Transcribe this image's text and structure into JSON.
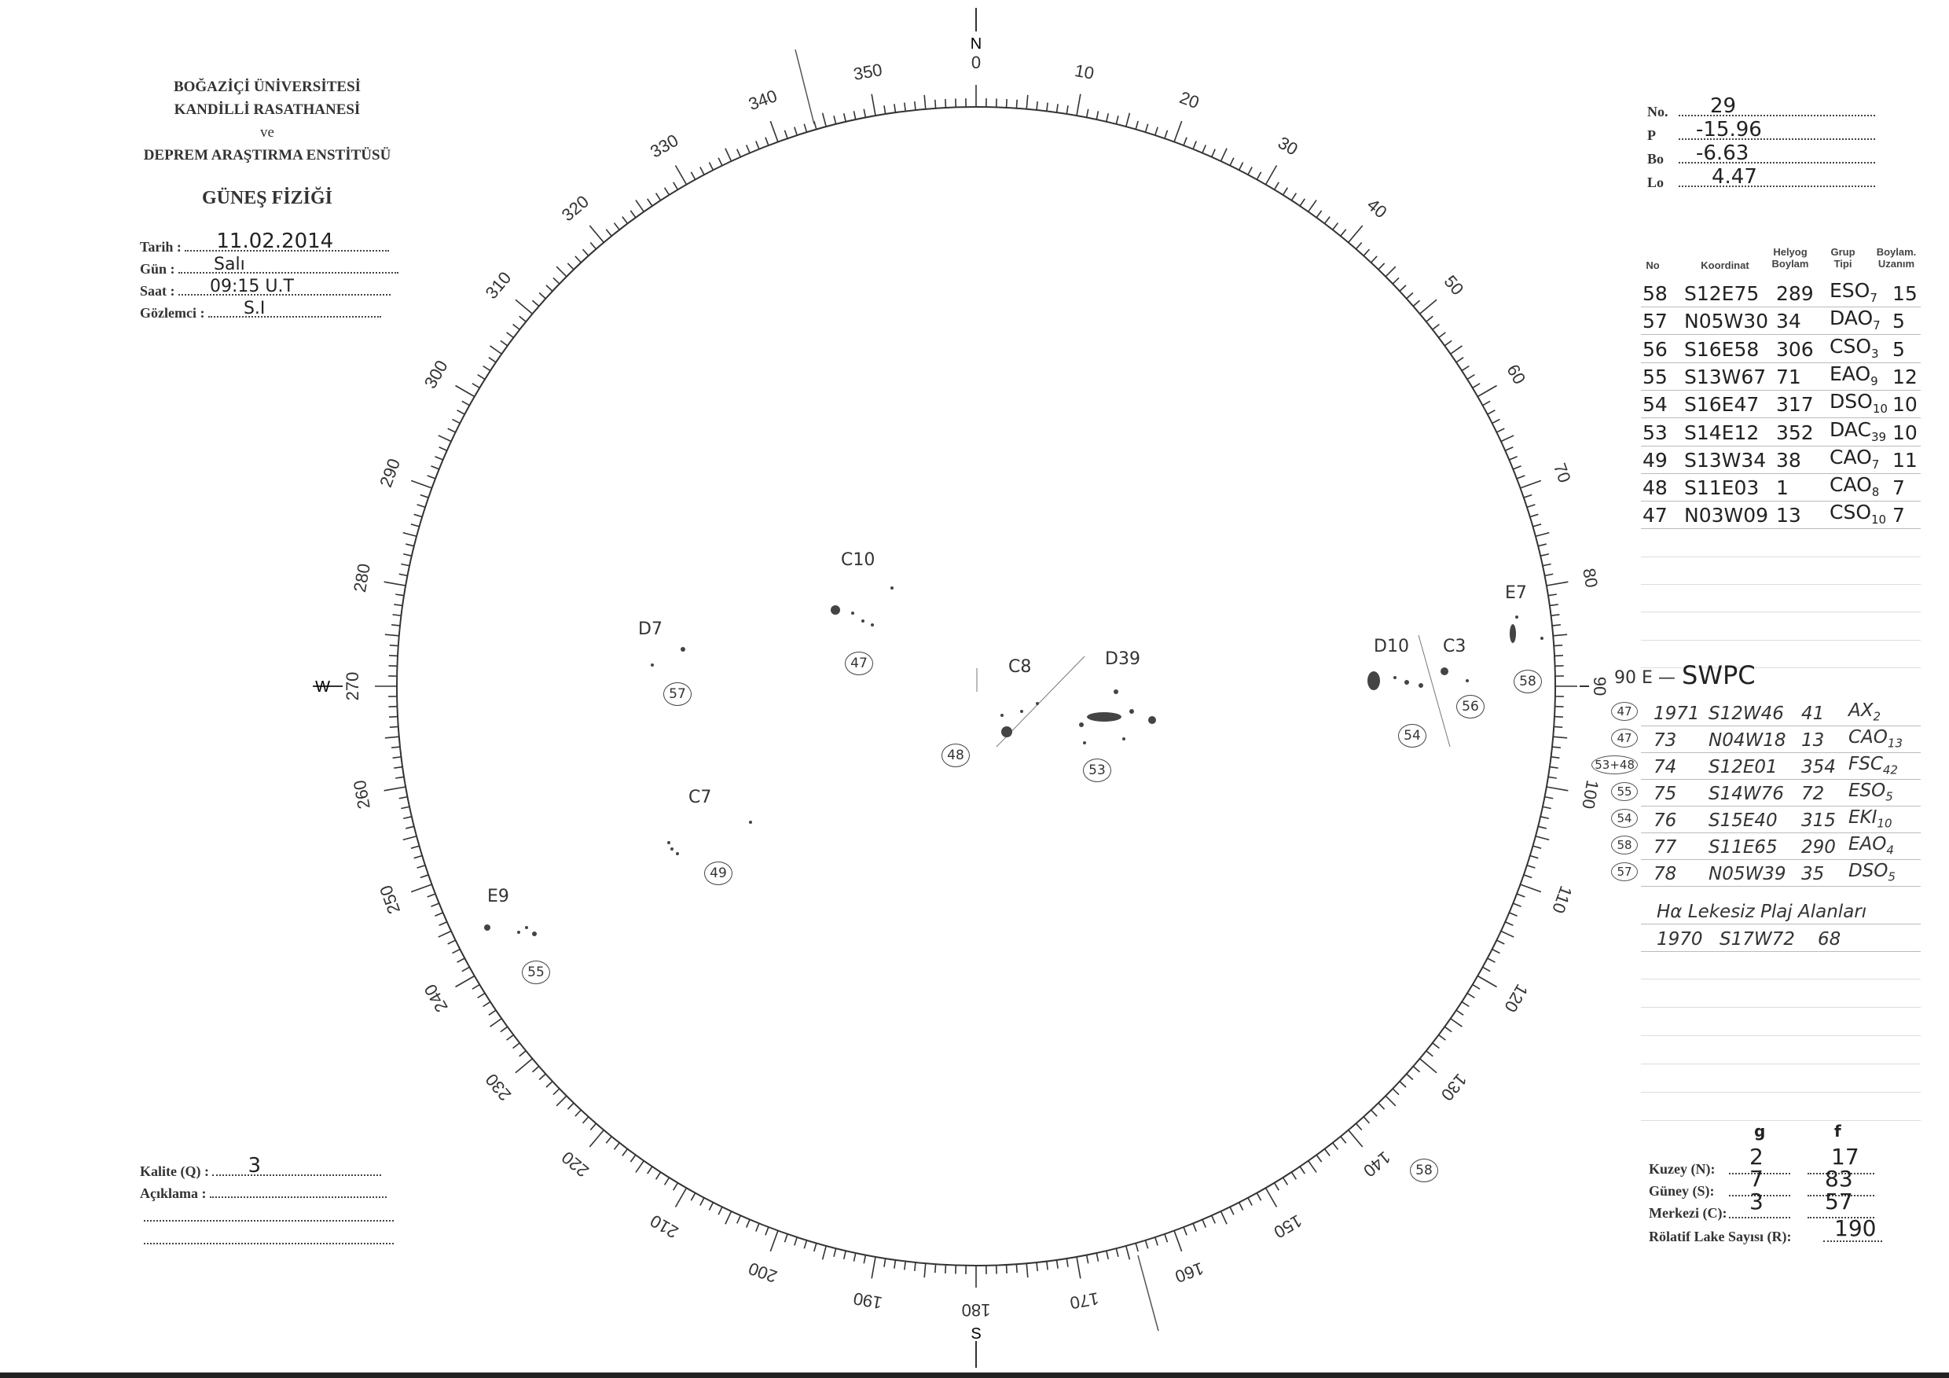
{
  "header": {
    "line1": "BOĞAZİÇİ ÜNİVERSİTESİ",
    "line2": "KANDİLLİ RASATHANESİ",
    "line3": "ve",
    "line4": "DEPREM ARAŞTIRMA ENSTİTÜSÜ",
    "title": "GÜNEŞ FİZİĞİ"
  },
  "observation": {
    "tarih_label": "Tarih :",
    "tarih": "11.02.2014",
    "gun_label": "Gün :",
    "gun": "Salı",
    "saat_label": "Saat :",
    "saat": "09:15 U.T",
    "gozlemci_label": "Gözlemci :",
    "gozlemci": "S.I"
  },
  "quality": {
    "kalite_label": "Kalite (Q) :",
    "kalite": "3",
    "aciklama_label": "Açıklama :"
  },
  "params": {
    "no_label": "No.",
    "no": "29",
    "p_label": "P",
    "p": "-15.96",
    "bo_label": "Bo",
    "bo": "-6.63",
    "lo_label": "Lo",
    "lo": "4.47"
  },
  "groups_table": {
    "headers": {
      "no": "No",
      "koordinat": "Koordinat",
      "helyog": "Helyog Boylam",
      "grup": "Grup Tipi",
      "uzanim": "Boylam. Uzanım"
    },
    "rows": [
      {
        "no": "58",
        "coord": "S12E75",
        "lon": "289",
        "type": "ESO",
        "sub": "7",
        "ext": "15"
      },
      {
        "no": "57",
        "coord": "N05W30",
        "lon": "34",
        "type": "DAO",
        "sub": "7",
        "ext": "5"
      },
      {
        "no": "56",
        "coord": "S16E58",
        "lon": "306",
        "type": "CSO",
        "sub": "3",
        "ext": "5"
      },
      {
        "no": "55",
        "coord": "S13W67",
        "lon": "71",
        "type": "EAO",
        "sub": "9",
        "ext": "12"
      },
      {
        "no": "54",
        "coord": "S16E47",
        "lon": "317",
        "type": "DSO",
        "sub": "10",
        "ext": "10"
      },
      {
        "no": "53",
        "coord": "S14E12",
        "lon": "352",
        "type": "DAC",
        "sub": "39",
        "ext": "10"
      },
      {
        "no": "49",
        "coord": "S13W34",
        "lon": "38",
        "type": "CAO",
        "sub": "7",
        "ext": "11"
      },
      {
        "no": "48",
        "coord": "S11E03",
        "lon": "1",
        "type": "CAO",
        "sub": "8",
        "ext": "7"
      },
      {
        "no": "47",
        "coord": "N03W09",
        "lon": "13",
        "type": "CSO",
        "sub": "10",
        "ext": "7"
      }
    ]
  },
  "swpc": {
    "prefix": "90 E —",
    "title": "SWPC",
    "rows": [
      {
        "ref": "47",
        "no": "1971",
        "coord": "S12W46",
        "lon": "41",
        "type": "AX",
        "sub": "2"
      },
      {
        "ref": "47",
        "no": "73",
        "coord": "N04W18",
        "lon": "13",
        "type": "CAO",
        "sub": "13"
      },
      {
        "ref": "53+48",
        "no": "74",
        "coord": "S12E01",
        "lon": "354",
        "type": "FSC",
        "sub": "42"
      },
      {
        "ref": "55",
        "no": "75",
        "coord": "S14W76",
        "lon": "72",
        "type": "ESO",
        "sub": "5"
      },
      {
        "ref": "54",
        "no": "76",
        "coord": "S15E40",
        "lon": "315",
        "type": "EKI",
        "sub": "10"
      },
      {
        "ref": "58",
        "no": "77",
        "coord": "S11E65",
        "lon": "290",
        "type": "EAO",
        "sub": "4"
      },
      {
        "ref": "57",
        "no": "78",
        "coord": "N05W39",
        "lon": "35",
        "type": "DSO",
        "sub": "5"
      }
    ],
    "plage_title": "Hα Lekesiz Plaj Alanları",
    "plage": {
      "no": "1970",
      "coord": "S17W72",
      "lon": "68"
    }
  },
  "counts": {
    "g_label": "g",
    "f_label": "f",
    "kuzey_label": "Kuzey (N):",
    "kuzey_g": "2",
    "kuzey_f": "17",
    "guney_label": "Güney (S):",
    "guney_g": "7",
    "guney_f": "83",
    "merkezi_label": "Merkezi (C):",
    "merkezi_g": "3",
    "merkezi_f": "57",
    "r_label": "Rölatif Lake Sayısı (R):",
    "r": "190"
  },
  "dial": {
    "label_step": 10,
    "north": "N",
    "south": "S",
    "east": "E",
    "west": "W"
  },
  "sunspot_groups": [
    {
      "class": "C10",
      "no": "47"
    },
    {
      "class": "D7",
      "no": "57"
    },
    {
      "class": "C8",
      "no": "48"
    },
    {
      "class": "D39",
      "no": "53"
    },
    {
      "class": "D10",
      "no": "54"
    },
    {
      "class": "C3",
      "no": "56"
    },
    {
      "class": "E7",
      "no": "58"
    },
    {
      "class": "C7",
      "no": "49"
    },
    {
      "class": "E9",
      "no": "55"
    }
  ],
  "extra_group_no": "58"
}
